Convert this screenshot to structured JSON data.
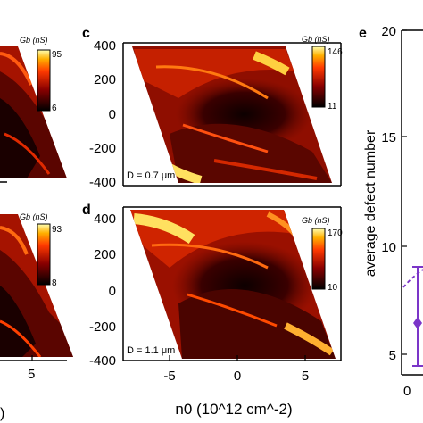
{
  "panels": {
    "left_top": {
      "colorbar_label": "Gb (nS)",
      "colorbar_max": "95",
      "colorbar_min": "6"
    },
    "left_bottom": {
      "colorbar_label": "Gb (nS)",
      "colorbar_max": "93",
      "colorbar_min": "8",
      "x_tick_labels": [
        "5"
      ],
      "x_label_fragment": ")"
    },
    "c": {
      "letter": "c",
      "y_tick_labels": [
        "400",
        "200",
        "0",
        "-200",
        "-400"
      ],
      "colorbar_label": "Gb (nS)",
      "colorbar_max": "146",
      "colorbar_min": "11",
      "annotation": "D = 0.7 μm"
    },
    "d": {
      "letter": "d",
      "y_tick_labels": [
        "400",
        "200",
        "0",
        "-200",
        "-400"
      ],
      "x_tick_labels": [
        "-5",
        "0",
        "5"
      ],
      "colorbar_label": "Gb (nS)",
      "colorbar_max": "170",
      "colorbar_min": "10",
      "annotation": "D = 1.1 μm",
      "x_axis_label": "n0 (10^12 cm^-2)"
    },
    "e": {
      "letter": "e",
      "y_axis_label": "average defect number",
      "y_tick_labels": [
        "20",
        "15",
        "10",
        "5"
      ],
      "x_tick_labels": [
        "0"
      ],
      "series_color": "#7b35c8",
      "point_y": 7.6
    }
  },
  "colors": {
    "map_dark": "#1a0000",
    "map_mid": "#c41a00",
    "map_bright": "#ffe040",
    "purple": "#7b35c8"
  }
}
